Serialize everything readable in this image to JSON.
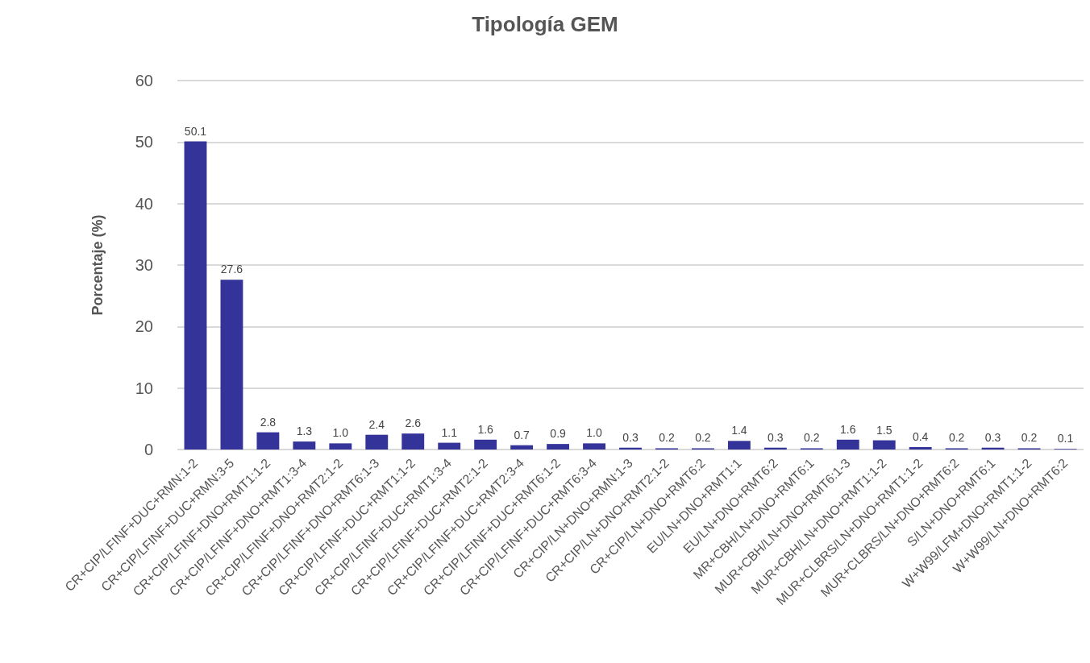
{
  "chart_data": {
    "type": "bar",
    "title": "Tipología GEM",
    "ylabel": "Porcentaje (%)",
    "categories": [
      "CR+CIP/LFINF+DUC+RMN:1-2",
      "CR+CIP/LFINF+DUC+RMN:3-5",
      "CR+CIP/LFINF+DNO+RMT1:1-2",
      "CR+CIP/LFINF+DNO+RMT1:3-4",
      "CR+CIP/LFINF+DNO+RMT2:1-2",
      "CR+CIP/LFINF+DNO+RMT6:1-3",
      "CR+CIP/LFINF+DUC+RMT1:1-2",
      "CR+CIP/LFINF+DUC+RMT1:3-4",
      "CR+CIP/LFINF+DUC+RMT2:1-2",
      "CR+CIP/LFINF+DUC+RMT2:3-4",
      "CR+CIP/LFINF+DUC+RMT6:1-2",
      "CR+CIP/LFINF+DUC+RMT6:3-4",
      "CR+CIP/LN+DNO+RMN:1-3",
      "CR+CIP/LN+DNO+RMT2:1-2",
      "CR+CIP/LN+DNO+RMT6:2",
      "EU/LN+DNO+RMT1:1",
      "EU/LN+DNO+RMT6:2",
      "MR+CBH/LN+DNO+RMT6:1",
      "MUR+CBH/LN+DNO+RMT6:1-3",
      "MUR+CBH/LN+DNO+RMT1:1-2",
      "MUR+CLBRS/LN+DNO+RMT1:1-2",
      "MUR+CLBRS/LN+DNO+RMT6:2",
      "S/LN+DNO+RMT6:1",
      "W+W99/LFM+DNO+RMT1:1-2",
      "W+W99/LN+DNO+RMT6:2"
    ],
    "values": [
      50.1,
      27.6,
      2.8,
      1.3,
      1.0,
      2.4,
      2.6,
      1.1,
      1.6,
      0.7,
      0.9,
      1.0,
      0.3,
      0.2,
      0.2,
      1.4,
      0.3,
      0.2,
      1.6,
      1.5,
      0.4,
      0.2,
      0.3,
      0.2,
      0.1
    ],
    "value_labels": [
      "50.1",
      "27.6",
      "2.8",
      "1.3",
      "1.0",
      "2.4",
      "2.6",
      "1.1",
      "1.6",
      "0.7",
      "0.9",
      "1.0",
      "0.3",
      "0.2",
      "0.2",
      "1.4",
      "0.3",
      "0.2",
      "1.6",
      "1.5",
      "0.4",
      "0.2",
      "0.3",
      "0.2",
      "0.1"
    ],
    "color": "#333399",
    "ylim": [
      0,
      60
    ],
    "yticks": [
      0,
      10,
      20,
      30,
      40,
      50,
      60
    ],
    "grid": "y"
  }
}
